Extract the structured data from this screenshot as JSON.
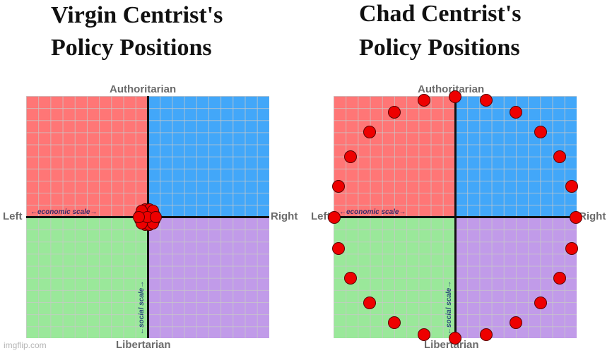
{
  "panels": [
    {
      "title_line1": "Virgin Centrist's",
      "title_line2": "Policy Positions",
      "axis_labels": {
        "top": "Authoritarian",
        "bottom": "Libertarian",
        "left": "Left",
        "right": "Right"
      },
      "scale_labels": {
        "economic": "←economic scale→",
        "social": "←social scale→"
      },
      "dots": [
        [
          -6,
          0
        ],
        [
          6,
          0
        ],
        [
          0,
          -6
        ],
        [
          0,
          6
        ],
        [
          -4,
          -4
        ],
        [
          4,
          -4
        ],
        [
          -4,
          4
        ],
        [
          4,
          4
        ],
        [
          -10,
          -3
        ],
        [
          10,
          -3
        ],
        [
          -10,
          4
        ],
        [
          10,
          4
        ],
        [
          -3,
          -11
        ],
        [
          3,
          -11
        ],
        [
          -3,
          11
        ],
        [
          3,
          11
        ],
        [
          -8,
          -9
        ],
        [
          8,
          -9
        ],
        [
          -8,
          9
        ],
        [
          8,
          9
        ],
        [
          0,
          0
        ],
        [
          -12,
          0
        ],
        [
          12,
          0
        ]
      ]
    },
    {
      "title_line1": "Chad Centrist's",
      "title_line2": "Policy Positions",
      "axis_labels": {
        "top": "Authoritarian",
        "bottom": "Libertarian",
        "left": "Left",
        "right": "Right"
      },
      "scale_labels": {
        "economic": "←economic scale→",
        "social": "←social scale→"
      },
      "dots": [
        [
          0,
          -171
        ],
        [
          44,
          -166
        ],
        [
          86,
          -149
        ],
        [
          121,
          -121
        ],
        [
          148,
          -86
        ],
        [
          165,
          -44
        ],
        [
          171,
          0
        ],
        [
          165,
          44
        ],
        [
          148,
          86
        ],
        [
          121,
          121
        ],
        [
          86,
          149
        ],
        [
          44,
          166
        ],
        [
          0,
          171
        ],
        [
          -44,
          166
        ],
        [
          -86,
          149
        ],
        [
          -121,
          121
        ],
        [
          -148,
          86
        ],
        [
          -165,
          44
        ],
        [
          -171,
          0
        ],
        [
          -165,
          -44
        ],
        [
          -148,
          -86
        ],
        [
          -121,
          -121
        ],
        [
          -86,
          -149
        ],
        [
          -44,
          -166
        ]
      ]
    }
  ],
  "colors": {
    "authoritarian_left": "#ff7676",
    "authoritarian_right": "#42a7f9",
    "libertarian_left": "#9ae89a",
    "libertarian_right": "#c19be9",
    "dot": "#ee0000"
  },
  "watermark": "imgflip.com"
}
